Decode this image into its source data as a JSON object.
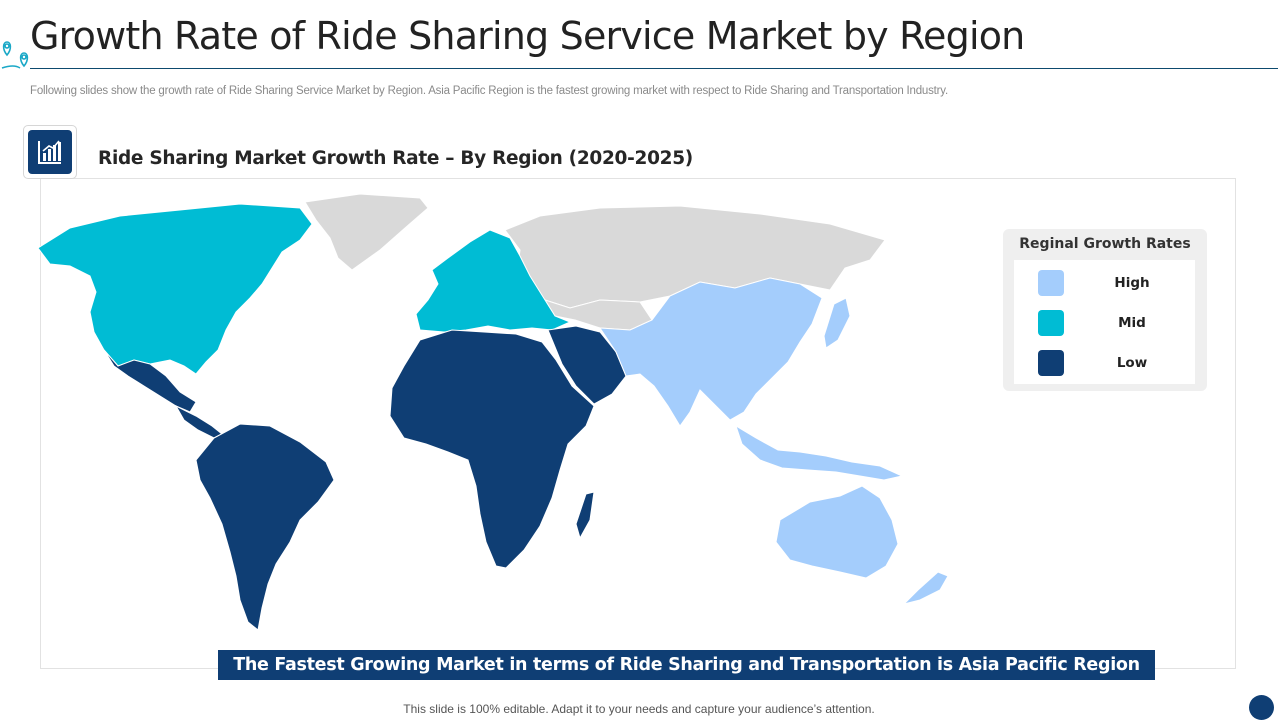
{
  "header": {
    "title": "Growth Rate of Ride Sharing Service Market by Region",
    "subtitle": "Following slides show the growth rate of Ride Sharing Service Market by Region. Asia Pacific Region is the fastest growing market with respect to Ride Sharing and Transportation Industry.",
    "logo_icon": "location-pin-icon"
  },
  "chart": {
    "icon": "bar-chart-icon",
    "title": "Ride Sharing Market Growth Rate – By Region (2020-2025)"
  },
  "colors": {
    "high": "#a4cdfc",
    "mid": "#00bcd4",
    "low": "#0f3e74",
    "no_data": "#d9d9d9",
    "accent": "#0f3e74"
  },
  "legend": {
    "title": "Reginal Growth Rates",
    "items": [
      {
        "label": "High",
        "color": "#a4cdfc"
      },
      {
        "label": "Mid",
        "color": "#00bcd4"
      },
      {
        "label": "Low",
        "color": "#0f3e74"
      }
    ]
  },
  "map": {
    "regions": [
      {
        "region": "North America",
        "rate": "Mid"
      },
      {
        "region": "Europe",
        "rate": "Mid"
      },
      {
        "region": "Asia Pacific",
        "rate": "High"
      },
      {
        "region": "Latin America",
        "rate": "Low"
      },
      {
        "region": "Middle East & Africa",
        "rate": "Low"
      }
    ]
  },
  "banner": {
    "text": "The Fastest Growing Market in terms of Ride Sharing and Transportation is Asia Pacific Region"
  },
  "footer": {
    "text": "This slide is 100% editable. Adapt it to your needs and capture your audience’s attention."
  }
}
